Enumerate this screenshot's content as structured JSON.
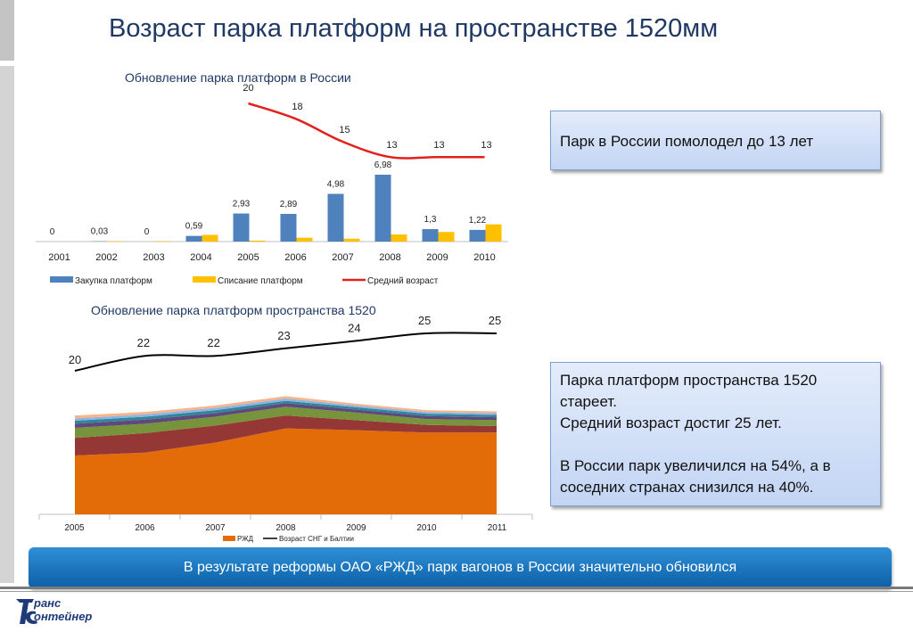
{
  "slide": {
    "title": "Возраст парка платформ на пространстве 1520мм"
  },
  "chart_data": [
    {
      "type": "bar",
      "title": "Обновление парка платформ в России",
      "categories": [
        "2001",
        "2002",
        "2003",
        "2004",
        "2005",
        "2006",
        "2007",
        "2008",
        "2009",
        "2010"
      ],
      "series": [
        {
          "name": "Закупка платформ",
          "kind": "bar",
          "color": "#4f81bd",
          "values": [
            0,
            0.03,
            0,
            0.59,
            2.93,
            2.89,
            4.98,
            6.98,
            1.3,
            1.22
          ],
          "labels": [
            "0",
            "0,03",
            "0",
            "0,59",
            "2,93",
            "2,89",
            "4,98",
            "6,98",
            "1,3",
            "1,22"
          ]
        },
        {
          "name": "Списание платформ",
          "kind": "bar",
          "color": "#ffc000",
          "values": [
            0,
            0.05,
            0.05,
            0.7,
            0.1,
            0.4,
            0.3,
            0.75,
            1.0,
            1.8
          ]
        },
        {
          "name": "Средний возраст",
          "kind": "line",
          "color": "#e2211c",
          "x": [
            "2005",
            "2006",
            "2007",
            "2008",
            "2009",
            "2010"
          ],
          "values": [
            20,
            18,
            15,
            13,
            13,
            13
          ]
        }
      ],
      "legend": "bottom"
    },
    {
      "type": "area",
      "title": "Обновление парка платформ пространства 1520",
      "categories": [
        "2005",
        "2006",
        "2007",
        "2008",
        "2009",
        "2010",
        "2011"
      ],
      "series": [
        {
          "name": "РЖД",
          "kind": "area",
          "color": "#e36c09",
          "values": [
            1.0,
            1.05,
            1.22,
            1.46,
            1.43,
            1.39,
            1.39
          ]
        },
        {
          "name": "",
          "kind": "area",
          "color": "#953735",
          "values": [
            0.3,
            0.33,
            0.29,
            0.22,
            0.17,
            0.13,
            0.11
          ]
        },
        {
          "name": "",
          "kind": "area",
          "color": "#77933c",
          "values": [
            0.17,
            0.16,
            0.15,
            0.15,
            0.13,
            0.1,
            0.1
          ]
        },
        {
          "name": "",
          "kind": "area",
          "color": "#5f497a",
          "values": [
            0.07,
            0.07,
            0.06,
            0.06,
            0.05,
            0.05,
            0.05
          ]
        },
        {
          "name": "",
          "kind": "area",
          "color": "#31859c",
          "values": [
            0.05,
            0.05,
            0.05,
            0.04,
            0.04,
            0.04,
            0.04
          ]
        },
        {
          "name": "",
          "kind": "area",
          "color": "#8eb4e3",
          "values": [
            0.04,
            0.04,
            0.04,
            0.04,
            0.03,
            0.03,
            0.03
          ]
        },
        {
          "name": "",
          "kind": "area",
          "color": "#f9b489",
          "values": [
            0.05,
            0.04,
            0.04,
            0.04,
            0.03,
            0.03,
            0.03
          ]
        },
        {
          "name": "Возраст СНГ и Балтии",
          "kind": "line",
          "color": "#000000",
          "values": [
            20,
            22,
            22,
            23,
            24,
            25,
            25
          ]
        }
      ],
      "legend": "bottom"
    }
  ],
  "boxes": {
    "russia": "Парк в России помолодел до 13 лет",
    "space1520": [
      "Парка платформ  пространства 1520",
      "стареет.",
      "Средний возраст достиг  25 лет.",
      "",
      "В России парк увеличился на 54%, а в",
      "соседних странах снизился на 40%."
    ]
  },
  "banner": {
    "text": "В результате реформы ОАО «РЖД» парк вагонов в России значительно обновился"
  },
  "logo": {
    "line1": "ранс",
    "line2": "онтейнер"
  }
}
